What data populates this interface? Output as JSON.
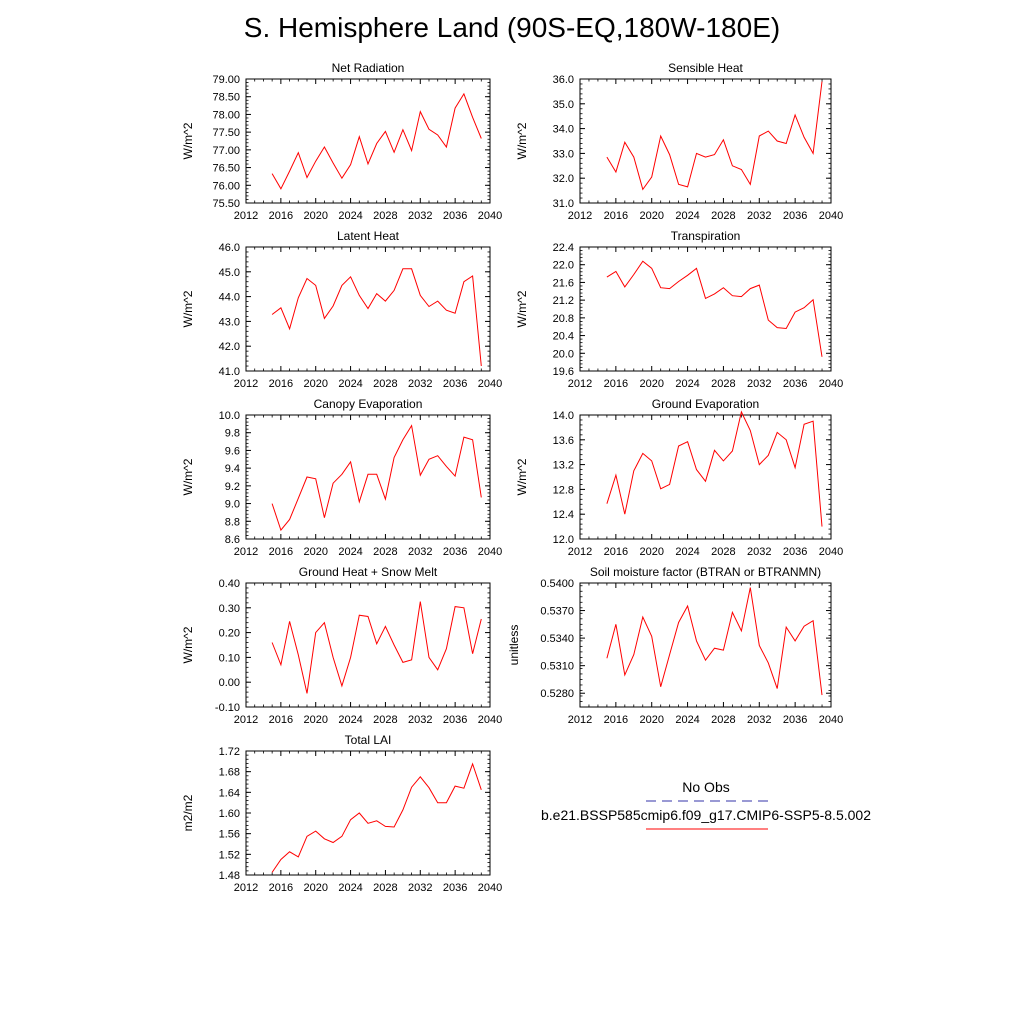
{
  "title": "S. Hemisphere Land (90S-EQ,180W-180E)",
  "legend": {
    "obs_label": "No Obs",
    "obs_color": "#3333aa",
    "case_label": "b.e21.BSSP585cmip6.f09_g17.CMIP6-SSP5-8.5.002",
    "case_color": "#ff0000"
  },
  "chart_data": [
    {
      "type": "line",
      "title": "Net Radiation",
      "ylabel": "W/m^2",
      "xlim": [
        2012,
        2040
      ],
      "ylim": [
        75.5,
        79.0
      ],
      "xticks": [
        "2012",
        "2016",
        "2020",
        "2024",
        "2028",
        "2032",
        "2036",
        "2040"
      ],
      "yticks": [
        "75.50",
        "76.00",
        "76.50",
        "77.00",
        "77.50",
        "78.00",
        "78.50",
        "79.00"
      ],
      "x": [
        2015,
        2016,
        2017,
        2018,
        2019,
        2020,
        2021,
        2022,
        2023,
        2024,
        2025,
        2026,
        2027,
        2028,
        2029,
        2030,
        2031,
        2032,
        2033,
        2034,
        2035,
        2036,
        2037,
        2038,
        2039
      ],
      "y": [
        76.33,
        75.9,
        76.4,
        76.92,
        76.22,
        76.68,
        77.08,
        76.63,
        76.2,
        76.58,
        77.37,
        76.6,
        77.18,
        77.52,
        76.93,
        77.57,
        76.98,
        78.08,
        77.58,
        77.42,
        77.08,
        78.18,
        78.58,
        77.92,
        77.32
      ]
    },
    {
      "type": "line",
      "title": "Sensible Heat",
      "ylabel": "W/m^2",
      "xlim": [
        2012,
        2040
      ],
      "ylim": [
        31.0,
        36.0
      ],
      "xticks": [
        "2012",
        "2016",
        "2020",
        "2024",
        "2028",
        "2032",
        "2036",
        "2040"
      ],
      "yticks": [
        "31.0",
        "32.0",
        "33.0",
        "34.0",
        "35.0",
        "36.0"
      ],
      "x": [
        2015,
        2016,
        2017,
        2018,
        2019,
        2020,
        2021,
        2022,
        2023,
        2024,
        2025,
        2026,
        2027,
        2028,
        2029,
        2030,
        2031,
        2032,
        2033,
        2034,
        2035,
        2036,
        2037,
        2038,
        2039
      ],
      "y": [
        32.85,
        32.25,
        33.45,
        32.85,
        31.55,
        32.05,
        33.7,
        32.95,
        31.75,
        31.65,
        33.0,
        32.85,
        32.95,
        33.55,
        32.5,
        32.35,
        31.75,
        33.7,
        33.9,
        33.5,
        33.4,
        34.55,
        33.65,
        33.0,
        35.9
      ]
    },
    {
      "type": "line",
      "title": "Latent Heat",
      "ylabel": "W/m^2",
      "xlim": [
        2012,
        2040
      ],
      "ylim": [
        41.0,
        46.0
      ],
      "xticks": [
        "2012",
        "2016",
        "2020",
        "2024",
        "2028",
        "2032",
        "2036",
        "2040"
      ],
      "yticks": [
        "41.0",
        "42.0",
        "43.0",
        "44.0",
        "45.0",
        "46.0"
      ],
      "x": [
        2015,
        2016,
        2017,
        2018,
        2019,
        2020,
        2021,
        2022,
        2023,
        2024,
        2025,
        2026,
        2027,
        2028,
        2029,
        2030,
        2031,
        2032,
        2033,
        2034,
        2035,
        2036,
        2037,
        2038,
        2039
      ],
      "y": [
        43.28,
        43.55,
        42.7,
        43.95,
        44.73,
        44.45,
        43.12,
        43.62,
        44.45,
        44.8,
        44.05,
        43.52,
        44.12,
        43.82,
        44.25,
        45.12,
        45.12,
        44.05,
        43.6,
        43.82,
        43.45,
        43.33,
        44.6,
        44.83,
        41.2
      ]
    },
    {
      "type": "line",
      "title": "Transpiration",
      "ylabel": "W/m^2",
      "xlim": [
        2012,
        2040
      ],
      "ylim": [
        19.6,
        22.4
      ],
      "xticks": [
        "2012",
        "2016",
        "2020",
        "2024",
        "2028",
        "2032",
        "2036",
        "2040"
      ],
      "yticks": [
        "19.6",
        "20.0",
        "20.4",
        "20.8",
        "21.2",
        "21.6",
        "22.0",
        "22.4"
      ],
      "x": [
        2015,
        2016,
        2017,
        2018,
        2019,
        2020,
        2021,
        2022,
        2023,
        2024,
        2025,
        2026,
        2027,
        2028,
        2029,
        2030,
        2031,
        2032,
        2033,
        2034,
        2035,
        2036,
        2037,
        2038,
        2039
      ],
      "y": [
        21.72,
        21.85,
        21.5,
        21.78,
        22.08,
        21.92,
        21.48,
        21.46,
        21.62,
        21.76,
        21.92,
        21.24,
        21.34,
        21.48,
        21.3,
        21.28,
        21.46,
        21.54,
        20.75,
        20.58,
        20.56,
        20.93,
        21.03,
        21.21,
        19.92
      ]
    },
    {
      "type": "line",
      "title": "Canopy Evaporation",
      "ylabel": "W/m^2",
      "xlim": [
        2012,
        2040
      ],
      "ylim": [
        8.6,
        10.0
      ],
      "xticks": [
        "2012",
        "2016",
        "2020",
        "2024",
        "2028",
        "2032",
        "2036",
        "2040"
      ],
      "yticks": [
        "8.6",
        "8.8",
        "9.0",
        "9.2",
        "9.4",
        "9.6",
        "9.8",
        "10.0"
      ],
      "x": [
        2015,
        2016,
        2017,
        2018,
        2019,
        2020,
        2021,
        2022,
        2023,
        2024,
        2025,
        2026,
        2027,
        2028,
        2029,
        2030,
        2031,
        2032,
        2033,
        2034,
        2035,
        2036,
        2037,
        2038,
        2039
      ],
      "y": [
        9.0,
        8.7,
        8.82,
        9.06,
        9.3,
        9.28,
        8.84,
        9.23,
        9.33,
        9.47,
        9.02,
        9.33,
        9.33,
        9.05,
        9.52,
        9.72,
        9.88,
        9.32,
        9.5,
        9.54,
        9.42,
        9.31,
        9.75,
        9.72,
        9.07
      ]
    },
    {
      "type": "line",
      "title": "Ground Evaporation",
      "ylabel": "W/m^2",
      "xlim": [
        2012,
        2040
      ],
      "ylim": [
        12.0,
        14.0
      ],
      "xticks": [
        "2012",
        "2016",
        "2020",
        "2024",
        "2028",
        "2032",
        "2036",
        "2040"
      ],
      "yticks": [
        "12.0",
        "12.4",
        "12.8",
        "13.2",
        "13.6",
        "14.0"
      ],
      "x": [
        2015,
        2016,
        2017,
        2018,
        2019,
        2020,
        2021,
        2022,
        2023,
        2024,
        2025,
        2026,
        2027,
        2028,
        2029,
        2030,
        2031,
        2032,
        2033,
        2034,
        2035,
        2036,
        2037,
        2038,
        2039
      ],
      "y": [
        12.57,
        13.03,
        12.4,
        13.1,
        13.38,
        13.26,
        12.81,
        12.88,
        13.5,
        13.57,
        13.12,
        12.93,
        13.43,
        13.26,
        13.42,
        14.05,
        13.75,
        13.2,
        13.35,
        13.72,
        13.6,
        13.15,
        13.85,
        13.9,
        12.2
      ]
    },
    {
      "type": "line",
      "title": "Ground Heat + Snow Melt",
      "ylabel": "W/m^2",
      "xlim": [
        2012,
        2040
      ],
      "ylim": [
        -0.1,
        0.4
      ],
      "xticks": [
        "2012",
        "2016",
        "2020",
        "2024",
        "2028",
        "2032",
        "2036",
        "2040"
      ],
      "yticks": [
        "-0.10",
        "0.00",
        "0.10",
        "0.20",
        "0.30",
        "0.40"
      ],
      "x": [
        2015,
        2016,
        2017,
        2018,
        2019,
        2020,
        2021,
        2022,
        2023,
        2024,
        2025,
        2026,
        2027,
        2028,
        2029,
        2030,
        2031,
        2032,
        2033,
        2034,
        2035,
        2036,
        2037,
        2038,
        2039
      ],
      "y": [
        0.16,
        0.07,
        0.245,
        0.11,
        -0.045,
        0.2,
        0.24,
        0.1,
        -0.015,
        0.1,
        0.27,
        0.265,
        0.155,
        0.225,
        0.15,
        0.08,
        0.09,
        0.325,
        0.1,
        0.05,
        0.135,
        0.305,
        0.3,
        0.115,
        0.255
      ]
    },
    {
      "type": "line",
      "title": "Soil moisture factor (BTRAN or BTRANMN)",
      "ylabel": "unitless",
      "xlim": [
        2012,
        2040
      ],
      "ylim": [
        0.5265,
        0.54
      ],
      "xticks": [
        "2012",
        "2016",
        "2020",
        "2024",
        "2028",
        "2032",
        "2036",
        "2040"
      ],
      "yticks": [
        "0.5280",
        "0.5310",
        "0.5340",
        "0.5370",
        "0.5400"
      ],
      "x": [
        2015,
        2016,
        2017,
        2018,
        2019,
        2020,
        2021,
        2022,
        2023,
        2024,
        2025,
        2026,
        2027,
        2028,
        2029,
        2030,
        2031,
        2032,
        2033,
        2034,
        2035,
        2036,
        2037,
        2038,
        2039
      ],
      "y": [
        0.5318,
        0.5355,
        0.53,
        0.5322,
        0.5363,
        0.5342,
        0.5287,
        0.5322,
        0.5357,
        0.5375,
        0.5337,
        0.5316,
        0.5329,
        0.5327,
        0.5368,
        0.5348,
        0.5395,
        0.5332,
        0.5313,
        0.5285,
        0.5352,
        0.5337,
        0.5353,
        0.5359,
        0.5278
      ]
    },
    {
      "type": "line",
      "title": "Total LAI",
      "ylabel": "m2/m2",
      "xlim": [
        2012,
        2040
      ],
      "ylim": [
        1.48,
        1.72
      ],
      "xticks": [
        "2012",
        "2016",
        "2020",
        "2024",
        "2028",
        "2032",
        "2036",
        "2040"
      ],
      "yticks": [
        "1.48",
        "1.52",
        "1.56",
        "1.60",
        "1.64",
        "1.68",
        "1.72"
      ],
      "x": [
        2015,
        2016,
        2017,
        2018,
        2019,
        2020,
        2021,
        2022,
        2023,
        2024,
        2025,
        2026,
        2027,
        2028,
        2029,
        2030,
        2031,
        2032,
        2033,
        2034,
        2035,
        2036,
        2037,
        2038,
        2039
      ],
      "y": [
        1.485,
        1.51,
        1.525,
        1.515,
        1.555,
        1.565,
        1.55,
        1.543,
        1.555,
        1.587,
        1.6,
        1.58,
        1.585,
        1.574,
        1.573,
        1.606,
        1.65,
        1.67,
        1.649,
        1.62,
        1.62,
        1.652,
        1.648,
        1.695,
        1.645
      ]
    }
  ]
}
